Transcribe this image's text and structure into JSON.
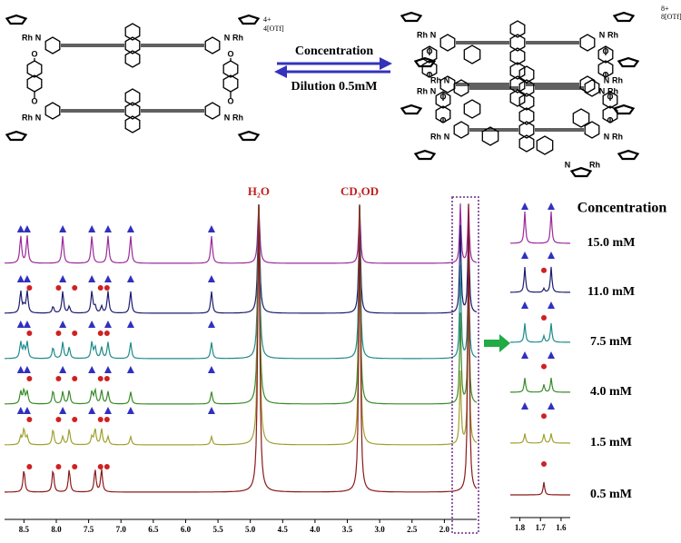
{
  "scheme": {
    "charge_left": "4+",
    "counter_left": "4[OTf]",
    "charge_right": "8+",
    "counter_right": "8[OTf]",
    "arrow_forward": "Concentration",
    "arrow_back": "Dilution 0.5mM",
    "atoms": {
      "rh": "Rh",
      "n": "N",
      "o": "O"
    }
  },
  "chart_data": {
    "type": "nmr",
    "peak_labels": [
      "H₂O",
      "CD₃OD"
    ],
    "xlim": [
      8.8,
      1.5
    ],
    "xticks": [
      8.5,
      {
        "value": 8,
        "label": "8.0"
      },
      7.5,
      {
        "value": 7,
        "label": "7.0"
      },
      6.5,
      {
        "value": 6,
        "label": "6.0"
      },
      5.5,
      {
        "value": 5,
        "label": "5.0"
      },
      4.5,
      {
        "value": 4,
        "label": "4.0"
      },
      3.5,
      {
        "value": 3,
        "label": "3.0"
      },
      2.5,
      {
        "value": 2,
        "label": "2.0"
      }
    ],
    "inset_xlim": [
      1.82,
      1.56
    ],
    "inset_xticks": [
      1.8,
      1.7,
      1.6
    ],
    "legend_title": "Concentration",
    "series": [
      {
        "name": "15.0 mM",
        "color": "#9b2a9b"
      },
      {
        "name": "11.0 mM",
        "color": "#1c1c70"
      },
      {
        "name": "7.5 mM",
        "color": "#1f8a8a"
      },
      {
        "name": "4.0 mM",
        "color": "#3a8a2a"
      },
      {
        "name": "1.5 mM",
        "color": "#a0a030"
      },
      {
        "name": "0.5 mM",
        "color": "#8b1a1a"
      }
    ]
  }
}
